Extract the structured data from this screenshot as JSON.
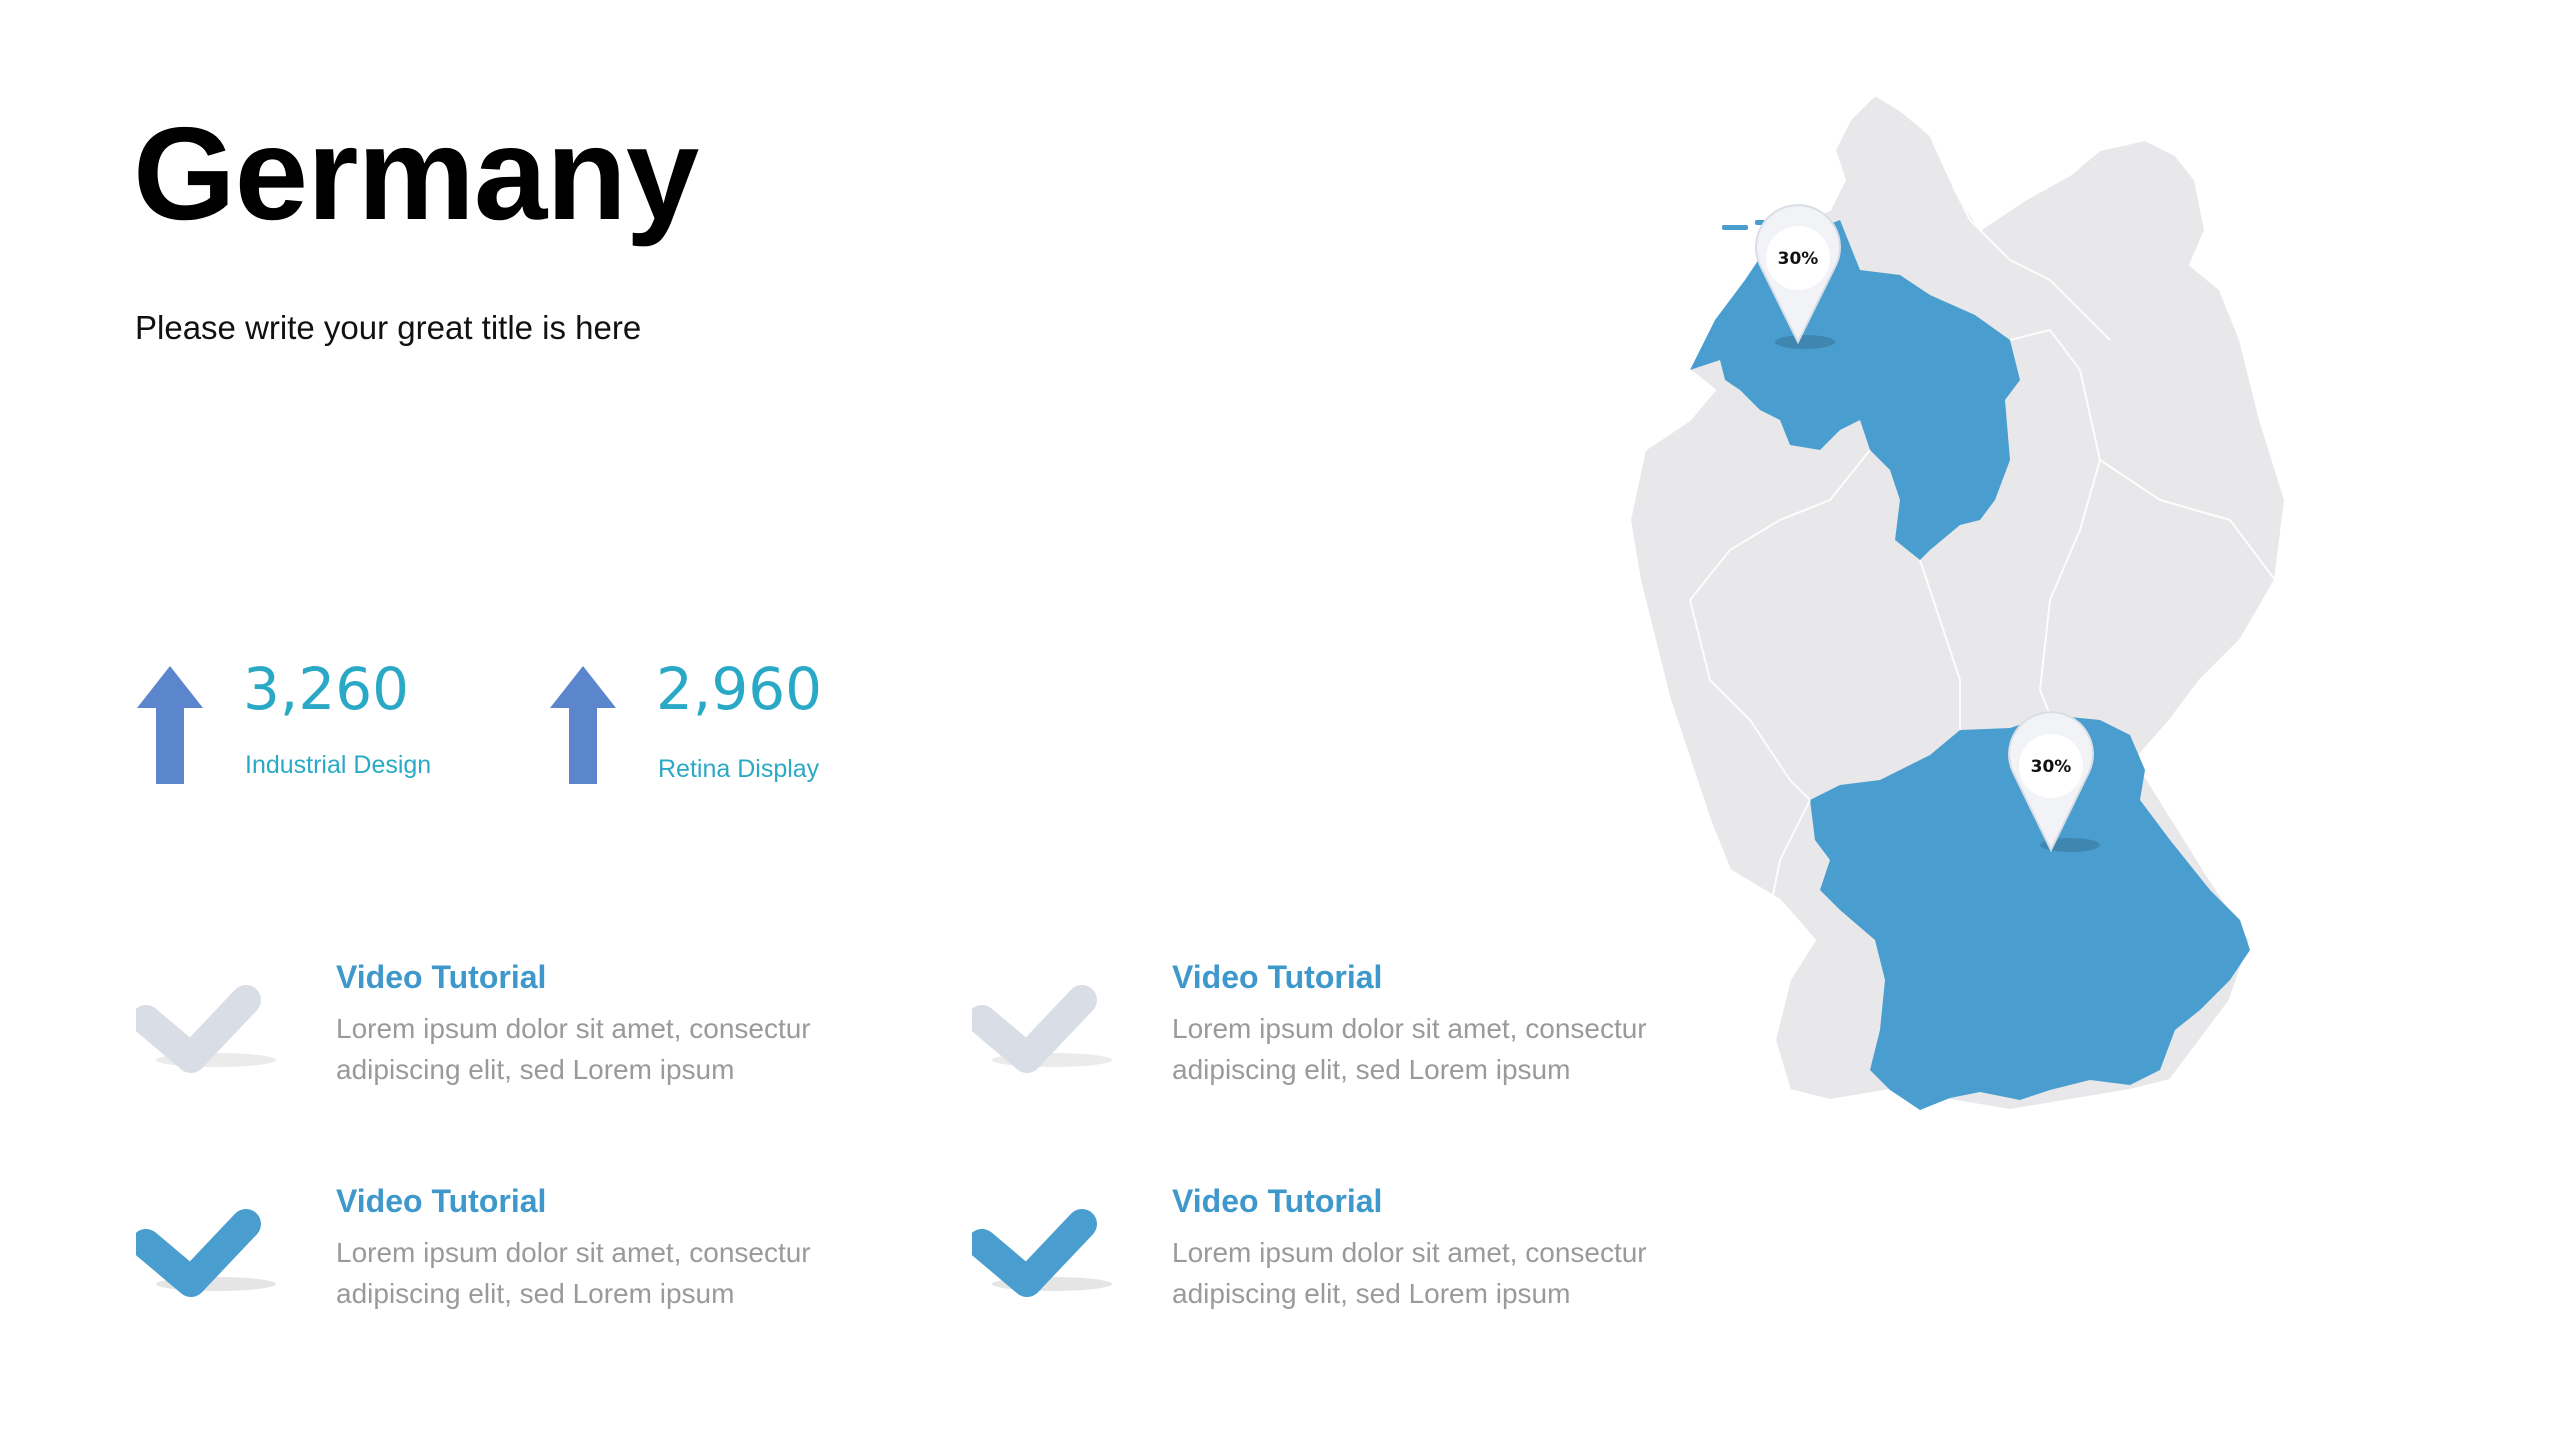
{
  "title": "Germany",
  "subtitle": "Please write your great title is here",
  "stats": [
    {
      "value": "3,260",
      "label": "Industrial Design",
      "icon": "arrow-up-icon"
    },
    {
      "value": "2,960",
      "label": "Retina Display",
      "icon": "arrow-up-icon"
    }
  ],
  "features": [
    {
      "heading": "Video Tutorial",
      "line1": "Lorem ipsum dolor sit amet, consectur",
      "line2": "adipiscing elit, sed Lorem ipsum",
      "checked": false
    },
    {
      "heading": "Video Tutorial",
      "line1": "Lorem ipsum dolor sit amet, consectur",
      "line2": "adipiscing elit, sed Lorem ipsum",
      "checked": false
    },
    {
      "heading": "Video Tutorial",
      "line1": "Lorem ipsum dolor sit amet, consectur",
      "line2": "adipiscing elit, sed Lorem ipsum",
      "checked": true
    },
    {
      "heading": "Video Tutorial",
      "line1": "Lorem ipsum dolor sit amet, consectur",
      "line2": "adipiscing elit, sed Lorem ipsum",
      "checked": true
    }
  ],
  "map": {
    "pins": [
      {
        "region": "Lower Saxony",
        "label": "30%"
      },
      {
        "region": "Bavaria",
        "label": "30%"
      }
    ]
  },
  "colors": {
    "accent": "#4a9ecf",
    "stat_text": "#2aa9c6",
    "arrow": "#5b85cc",
    "map_base": "#e8e8ea",
    "check_inactive": "#d9dde6"
  }
}
